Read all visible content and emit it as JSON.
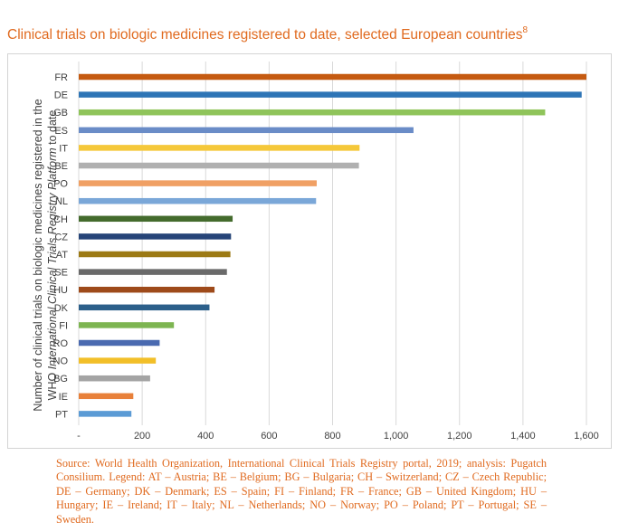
{
  "title": {
    "text": "Clinical trials on biologic medicines registered to date, selected European countries",
    "footnote": "8"
  },
  "chart_data": {
    "type": "bar",
    "orientation": "horizontal",
    "categories": [
      "FR",
      "DE",
      "GB",
      "ES",
      "IT",
      "BE",
      "PO",
      "NL",
      "CH",
      "CZ",
      "AT",
      "SE",
      "HU",
      "DK",
      "FI",
      "RO",
      "NO",
      "BG",
      "IE",
      "PT"
    ],
    "values": [
      1600,
      1585,
      1470,
      1055,
      885,
      883,
      750,
      748,
      485,
      480,
      478,
      467,
      428,
      412,
      300,
      255,
      243,
      225,
      172,
      166
    ],
    "colors": [
      "#c55a11",
      "#2e75b6",
      "#8fc45a",
      "#6a8cc7",
      "#f5c83a",
      "#b0b0b0",
      "#f0a064",
      "#7aa7d8",
      "#446b2d",
      "#264478",
      "#9c7a14",
      "#6a6a6a",
      "#9e4a1a",
      "#2c5f8a",
      "#7db551",
      "#4a6ab0",
      "#f2bf28",
      "#a4a4a4",
      "#e8803a",
      "#5b9bd5"
    ],
    "xlim": [
      0,
      1600
    ],
    "xticks": [
      "-",
      "200",
      "400",
      "600",
      "800",
      "1,000",
      "1,200",
      "1,400",
      "1,600"
    ],
    "xtick_values": [
      0,
      200,
      400,
      600,
      800,
      1000,
      1200,
      1400,
      1600
    ],
    "ylabel_line1": "Number of clinical trials on biologic medicines registered in the",
    "ylabel_line2_prefix": "WHO ",
    "ylabel_line2_italic": "International Clinical Trials Registry Platform",
    "ylabel_line2_suffix": " to date",
    "grid": true
  },
  "source": "Source: World Health Organization, International Clinical Trials Registry portal, 2019; analysis: Pugatch Consilium. Legend: AT – Austria; BE – Belgium; BG – Bulgaria; CH – Switzerland; CZ – Czech Republic; DE – Germany; DK – Denmark; ES – Spain; FI – Finland; FR – France; GB – United Kingdom; HU – Hungary; IE – Ireland; IT – Italy; NL – Netherlands; NO – Norway; PO – Poland; PT – Portugal; SE – Sweden."
}
